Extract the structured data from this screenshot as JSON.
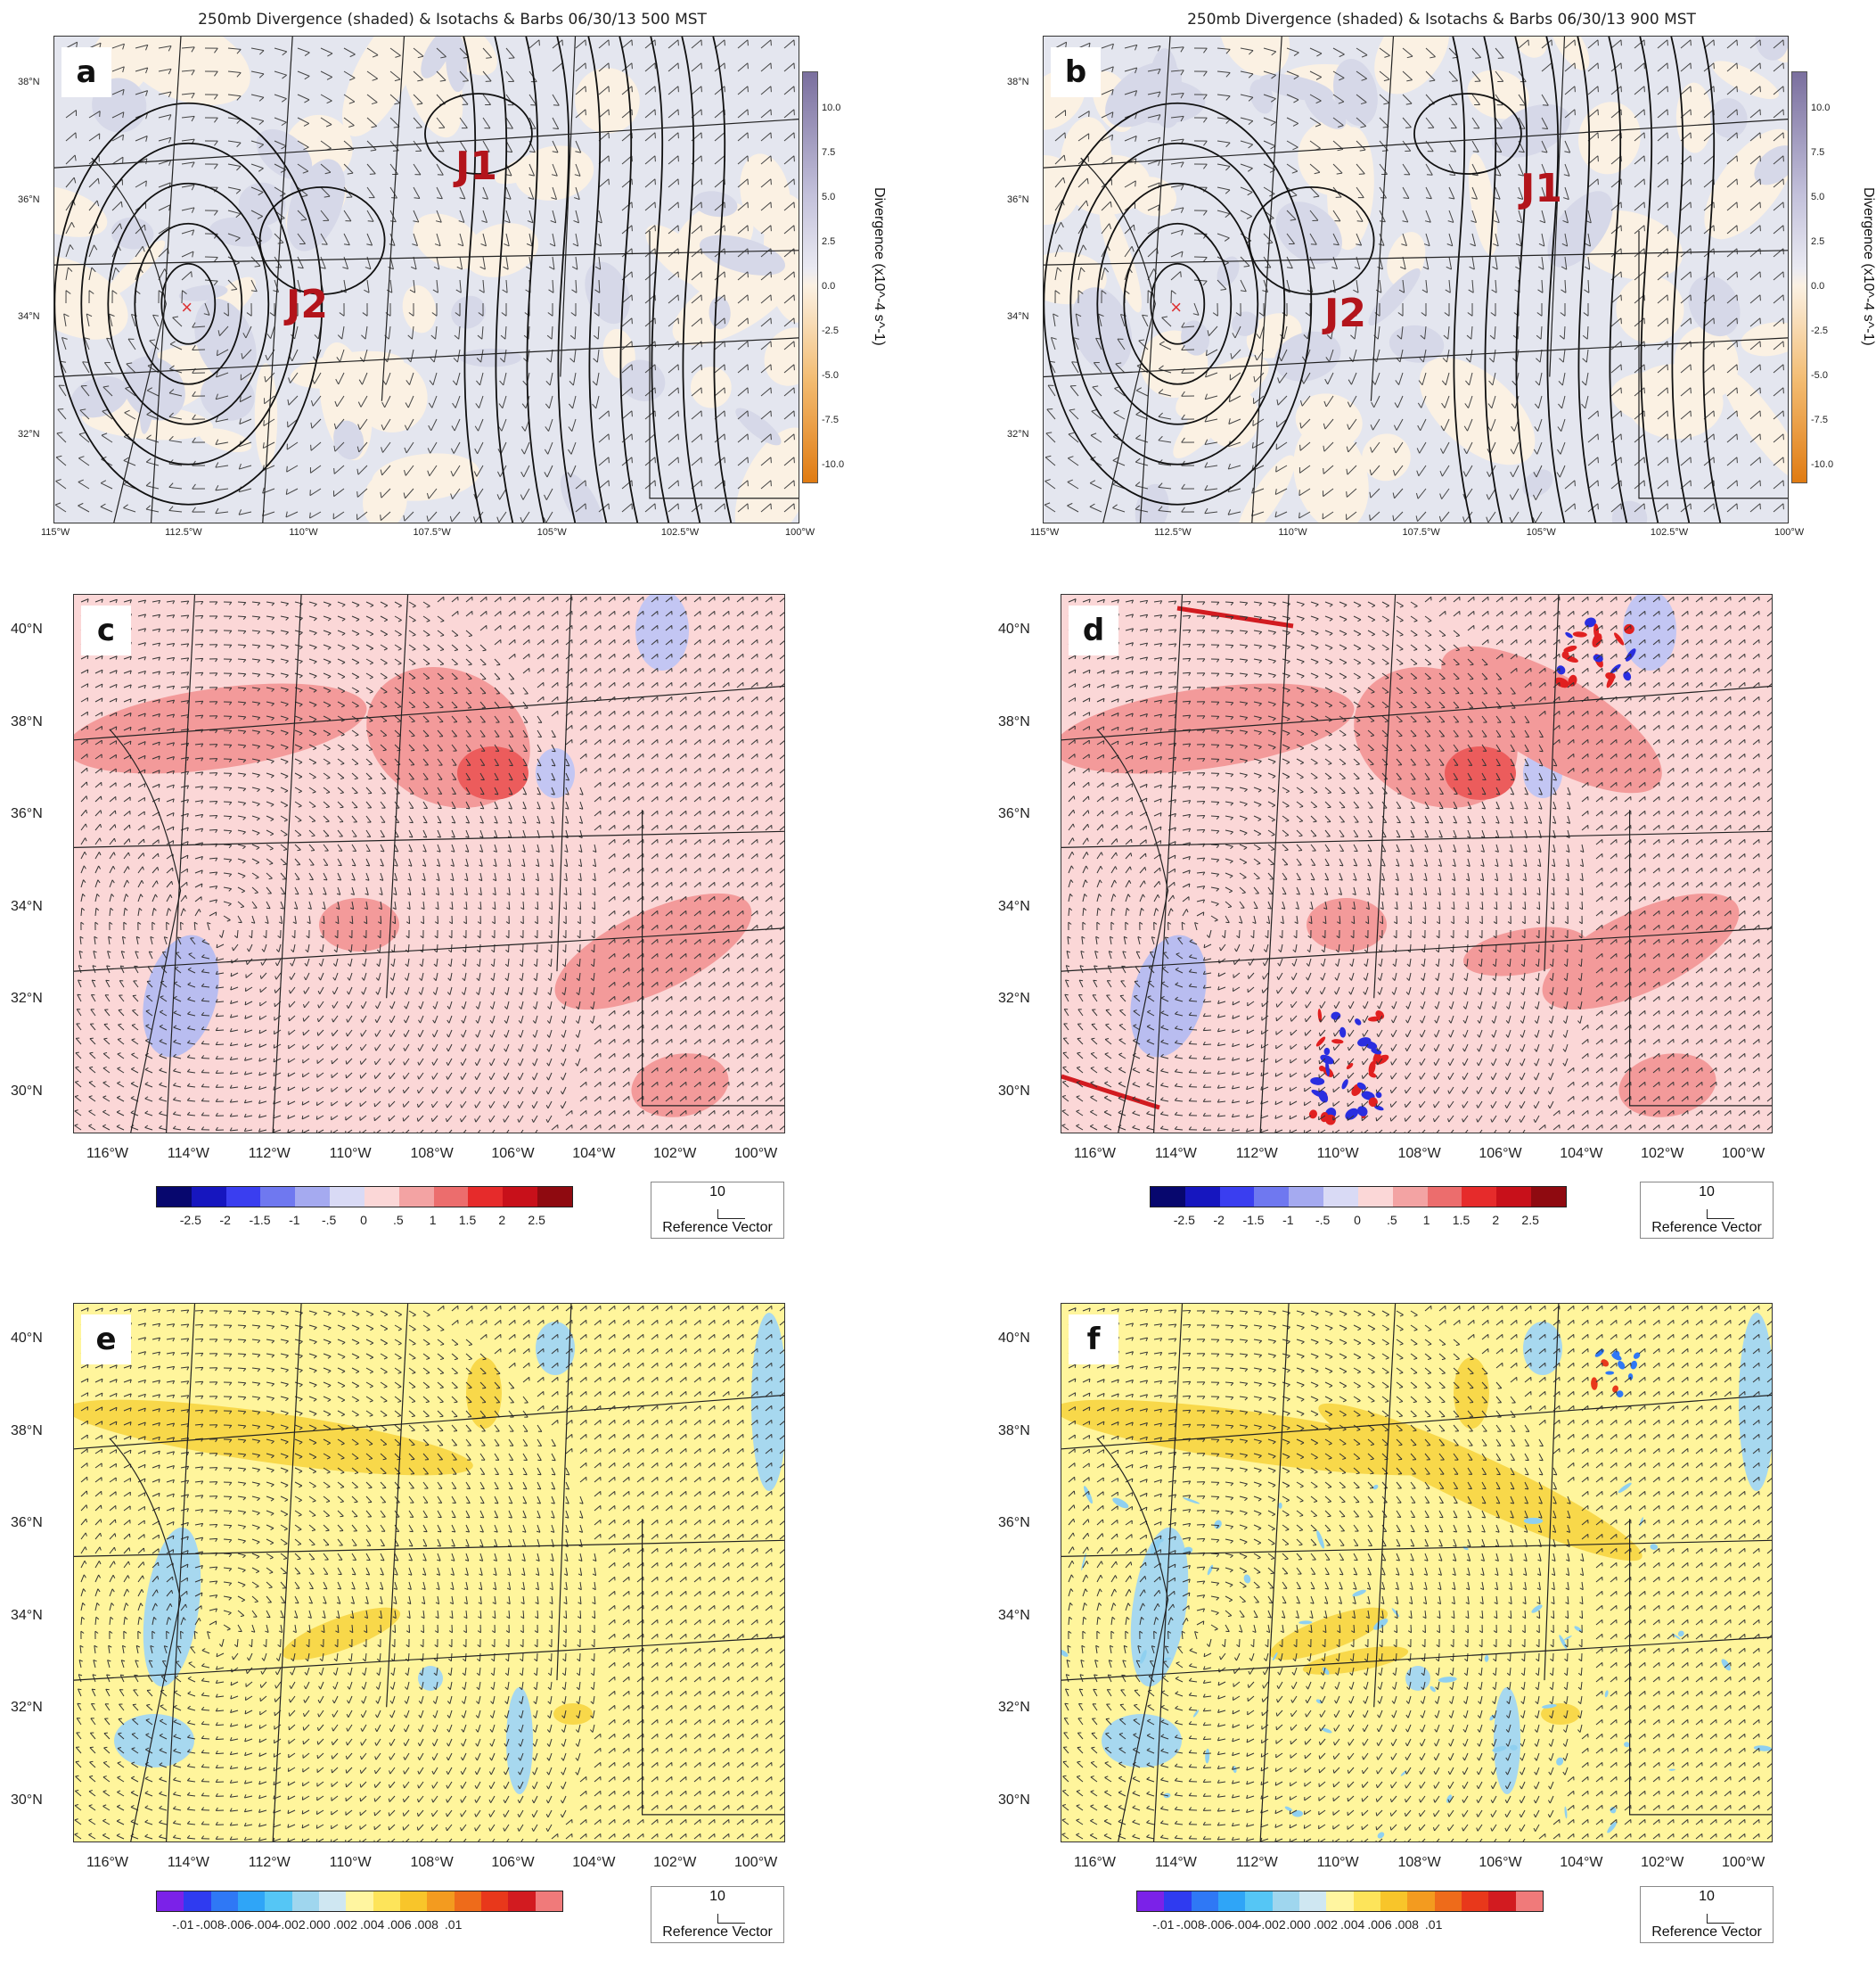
{
  "panels": {
    "a": {
      "label": "a",
      "title": "250mb Divergence (shaded) & Isotachs & Barbs 06/30/13 500 MST",
      "jets": [
        "J1",
        "J2"
      ],
      "lat_ticks": [
        "38°N",
        "36°N",
        "34°N",
        "32°N"
      ],
      "lon_ticks": [
        "115°W",
        "112.5°W",
        "110°W",
        "107.5°W",
        "105°W",
        "102.5°W",
        "100°W"
      ],
      "colorbar_label": "Divergence (x10^-4 s^-1)",
      "colorbar_ticks": [
        "10.0",
        "7.5",
        "5.0",
        "2.5",
        "0.0",
        "-2.5",
        "-5.0",
        "-7.5",
        "-10.0"
      ]
    },
    "b": {
      "label": "b",
      "title": "250mb Divergence (shaded) & Isotachs & Barbs 06/30/13 900 MST",
      "jets": [
        "J1",
        "J2"
      ],
      "lat_ticks": [
        "38°N",
        "36°N",
        "34°N",
        "32°N"
      ],
      "lon_ticks": [
        "115°W",
        "112.5°W",
        "110°W",
        "107.5°W",
        "105°W",
        "102.5°W",
        "100°W"
      ],
      "colorbar_label": "Divergence (x10^-4 s^-1)",
      "colorbar_ticks": [
        "10.0",
        "7.5",
        "5.0",
        "2.5",
        "0.0",
        "-2.5",
        "-5.0",
        "-7.5",
        "-10.0"
      ]
    },
    "c": {
      "label": "c",
      "lat_ticks": [
        "40°N",
        "38°N",
        "36°N",
        "34°N",
        "32°N",
        "30°N"
      ],
      "lon_ticks": [
        "116°W",
        "114°W",
        "112°W",
        "110°W",
        "108°W",
        "106°W",
        "104°W",
        "102°W",
        "100°W"
      ],
      "colorbar_ticks": [
        "-2.5",
        "-2",
        "-1.5",
        "-1",
        "-.5",
        "0",
        ".5",
        "1",
        "1.5",
        "2",
        "2.5"
      ],
      "ref_value": "10",
      "ref_label": "Reference Vector"
    },
    "d": {
      "label": "d",
      "lat_ticks": [
        "40°N",
        "38°N",
        "36°N",
        "34°N",
        "32°N",
        "30°N"
      ],
      "lon_ticks": [
        "116°W",
        "114°W",
        "112°W",
        "110°W",
        "108°W",
        "106°W",
        "104°W",
        "102°W",
        "100°W"
      ],
      "colorbar_ticks": [
        "-2.5",
        "-2",
        "-1.5",
        "-1",
        "-.5",
        "0",
        ".5",
        "1",
        "1.5",
        "2",
        "2.5"
      ],
      "ref_value": "10",
      "ref_label": "Reference Vector"
    },
    "e": {
      "label": "e",
      "lat_ticks": [
        "40°N",
        "38°N",
        "36°N",
        "34°N",
        "32°N",
        "30°N"
      ],
      "lon_ticks": [
        "116°W",
        "114°W",
        "112°W",
        "110°W",
        "108°W",
        "106°W",
        "104°W",
        "102°W",
        "100°W"
      ],
      "colorbar_ticks": [
        "-.01",
        "-.008",
        "-.006",
        "-.004",
        "-.002",
        ".000",
        ".002",
        ".004",
        ".006",
        ".008",
        ".01"
      ],
      "ref_value": "10",
      "ref_label": "Reference Vector"
    },
    "f": {
      "label": "f",
      "lat_ticks": [
        "40°N",
        "38°N",
        "36°N",
        "34°N",
        "32°N",
        "30°N"
      ],
      "lon_ticks": [
        "116°W",
        "114°W",
        "112°W",
        "110°W",
        "108°W",
        "106°W",
        "104°W",
        "102°W",
        "100°W"
      ],
      "colorbar_ticks": [
        "-.01",
        "-.008",
        "-.006",
        "-.004",
        "-.002",
        ".000",
        ".002",
        ".004",
        ".006",
        ".008",
        ".01"
      ],
      "ref_value": "10",
      "ref_label": "Reference Vector"
    }
  },
  "colors": {
    "div_ab": [
      "#7a6f9e",
      "#9d96bd",
      "#c3c1db",
      "#dedeea",
      "#fbf1e3",
      "#f8dbb0",
      "#f3bc72",
      "#ec9a33",
      "#e07b12"
    ],
    "div_cd": [
      "#07076e",
      "#1616bf",
      "#3a3ef0",
      "#6f78f0",
      "#a5aaf0",
      "#d9daf5",
      "#fbd7d7",
      "#f3a3a3",
      "#ec6d6d",
      "#e62b2b",
      "#c8101a",
      "#8f0a10"
    ],
    "div_ef": [
      "#7b22e8",
      "#2f3bf0",
      "#2f78f5",
      "#2fa5f7",
      "#55c6f5",
      "#9fd6ee",
      "#cfe7f2",
      "#fff5a0",
      "#fde45a",
      "#f8c52a",
      "#f39b1f",
      "#ee6b1a",
      "#e8381b",
      "#d21b20",
      "#f07a7a"
    ],
    "bg_c": "#fbd7d7",
    "bg_e": "#fff59c",
    "bg_a": "#e4e6ef"
  },
  "chart_data": [
    {
      "panel": "a",
      "type": "heatmap",
      "title": "250mb Divergence (shaded) & Isotachs & Barbs 06/30/13 500 MST",
      "crange": [
        -10,
        10
      ],
      "annotations": [
        "J1",
        "J2"
      ]
    },
    {
      "panel": "b",
      "type": "heatmap",
      "title": "250mb Divergence (shaded) & Isotachs & Barbs 06/30/13 900 MST",
      "crange": [
        -10,
        10
      ],
      "annotations": [
        "J1",
        "J2"
      ]
    },
    {
      "panel": "c",
      "type": "heatmap",
      "crange": [
        -2.5,
        2.5
      ]
    },
    {
      "panel": "d",
      "type": "heatmap",
      "crange": [
        -2.5,
        2.5
      ]
    },
    {
      "panel": "e",
      "type": "heatmap",
      "crange": [
        -0.01,
        0.01
      ]
    },
    {
      "panel": "f",
      "type": "heatmap",
      "crange": [
        -0.01,
        0.01
      ]
    }
  ]
}
